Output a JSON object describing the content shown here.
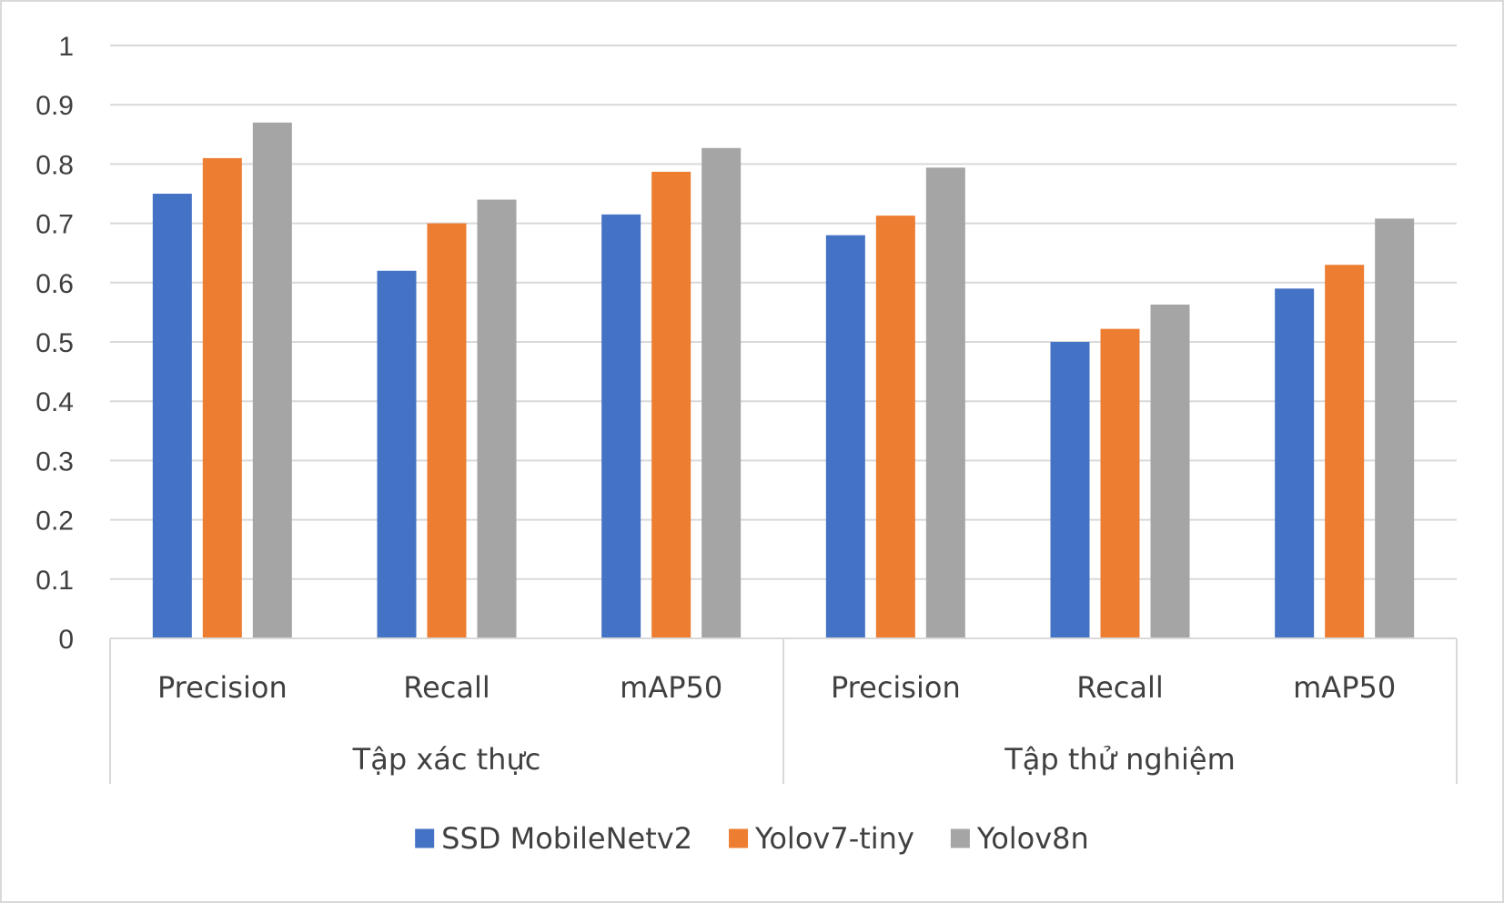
{
  "chart_data": {
    "type": "bar",
    "title": "",
    "xlabel": "",
    "ylabel": "",
    "ylim": [
      0,
      1
    ],
    "yticks": [
      "0",
      "0.1",
      "0.2",
      "0.3",
      "0.4",
      "0.5",
      "0.6",
      "0.7",
      "0.8",
      "0.9",
      "1"
    ],
    "grid": true,
    "legend_position": "bottom",
    "groups": [
      {
        "label": "Tập xác thực",
        "categories": [
          "Precision",
          "Recall",
          "mAP50"
        ]
      },
      {
        "label": "Tập thử nghiệm",
        "categories": [
          "Precision",
          "Recall",
          "mAP50"
        ]
      }
    ],
    "series": [
      {
        "name": "SSD MobileNetv2",
        "color": "#4472c4",
        "values": [
          0.75,
          0.62,
          0.715,
          0.68,
          0.5,
          0.59
        ]
      },
      {
        "name": "Yolov7-tiny",
        "color": "#ed7d31",
        "values": [
          0.81,
          0.7,
          0.787,
          0.713,
          0.522,
          0.63
        ]
      },
      {
        "name": "Yolov8n",
        "color": "#a5a5a5",
        "values": [
          0.87,
          0.74,
          0.827,
          0.794,
          0.563,
          0.708
        ]
      }
    ]
  }
}
